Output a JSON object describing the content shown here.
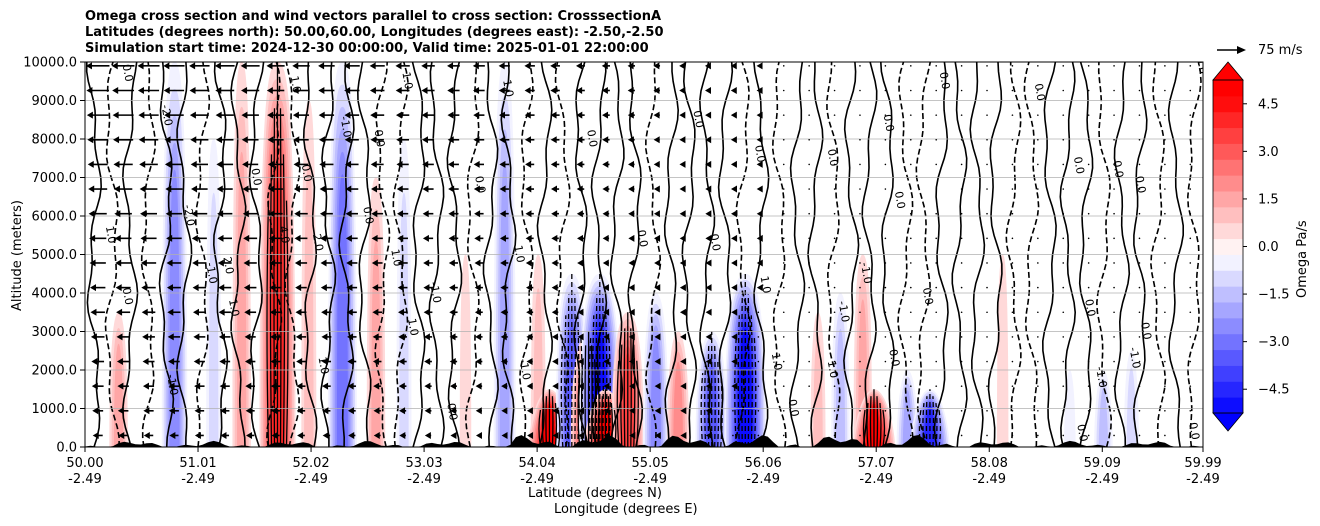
{
  "chart_data": {
    "type": "contourf",
    "title_lines": [
      "Omega cross section and wind vectors parallel to cross section: CrosssectionA",
      "Latitudes (degrees north): 50.00,60.00, Longitudes (degrees east): -2.50,-2.50",
      "Simulation start time: 2024-12-30 00:00:00, Valid time: 2025-01-01 22:00:00"
    ],
    "xlabel_line1": "Latitude (degrees N)",
    "xlabel_line2": "Longitude (degrees E)",
    "ylabel": "Altitude (meters)",
    "ylim": [
      0,
      10000
    ],
    "xlim": [
      50.0,
      59.99
    ],
    "x_ticks": [
      {
        "value": 50.0,
        "lat": "50.00",
        "lon": "-2.49"
      },
      {
        "value": 51.01,
        "lat": "51.01",
        "lon": "-2.49"
      },
      {
        "value": 52.02,
        "lat": "52.02",
        "lon": "-2.49"
      },
      {
        "value": 53.03,
        "lat": "53.03",
        "lon": "-2.49"
      },
      {
        "value": 54.04,
        "lat": "54.04",
        "lon": "-2.49"
      },
      {
        "value": 55.05,
        "lat": "55.05",
        "lon": "-2.49"
      },
      {
        "value": 56.06,
        "lat": "56.06",
        "lon": "-2.49"
      },
      {
        "value": 57.07,
        "lat": "57.07",
        "lon": "-2.49"
      },
      {
        "value": 58.08,
        "lat": "58.08",
        "lon": "-2.49"
      },
      {
        "value": 59.09,
        "lat": "59.09",
        "lon": "-2.49"
      },
      {
        "value": 59.99,
        "lat": "59.99",
        "lon": "-2.49"
      }
    ],
    "y_ticks": [
      {
        "value": 0,
        "label": "0.0"
      },
      {
        "value": 1000,
        "label": "1000.0"
      },
      {
        "value": 2000,
        "label": "2000.0"
      },
      {
        "value": 3000,
        "label": "3000.0"
      },
      {
        "value": 4000,
        "label": "4000.0"
      },
      {
        "value": 5000,
        "label": "5000.0"
      },
      {
        "value": 6000,
        "label": "6000.0"
      },
      {
        "value": 7000,
        "label": "7000.0"
      },
      {
        "value": 8000,
        "label": "8000.0"
      },
      {
        "value": 9000,
        "label": "9000.0"
      },
      {
        "value": 10000,
        "label": "10000.0"
      }
    ],
    "grid": "horizontal",
    "colorbar": {
      "label": "Omega Pa/s",
      "range": [
        -5.25,
        5.25
      ],
      "ticks": [
        {
          "value": 4.5,
          "label": "4.5"
        },
        {
          "value": 3.0,
          "label": "3.0"
        },
        {
          "value": 1.5,
          "label": "1.5"
        },
        {
          "value": 0.0,
          "label": "0.0"
        },
        {
          "value": -1.5,
          "label": "−1.5"
        },
        {
          "value": -3.0,
          "label": "−3.0"
        },
        {
          "value": -4.5,
          "label": "−4.5"
        }
      ],
      "extend": "both",
      "levels_step": 0.5,
      "min_color": "#0000ff",
      "mid_color": "#ffffff",
      "max_color": "#ff0000"
    },
    "quiver_key": {
      "label": "75 m/s"
    },
    "omega_features": [
      {
        "lat": 50.3,
        "z_top": 3500,
        "omega": 1.5
      },
      {
        "lat": 50.8,
        "z_top": 10000,
        "omega": -2.5
      },
      {
        "lat": 51.15,
        "z_top": 8000,
        "omega": -1.0
      },
      {
        "lat": 51.4,
        "z_top": 10000,
        "omega": 1.5
      },
      {
        "lat": 51.72,
        "z_top": 10000,
        "omega": 4.0
      },
      {
        "lat": 52.0,
        "z_top": 9000,
        "omega": 1.0
      },
      {
        "lat": 52.3,
        "z_top": 10000,
        "omega": -3.0
      },
      {
        "lat": 52.6,
        "z_top": 7000,
        "omega": 1.5
      },
      {
        "lat": 52.85,
        "z_top": 8000,
        "omega": -1.0
      },
      {
        "lat": 53.4,
        "z_top": 5000,
        "omega": 0.5
      },
      {
        "lat": 53.75,
        "z_top": 10000,
        "omega": -2.0
      },
      {
        "lat": 54.05,
        "z_top": 5000,
        "omega": 1.0
      },
      {
        "lat": 54.15,
        "z_top": 1500,
        "omega": 5.0
      },
      {
        "lat": 54.35,
        "z_top": 4500,
        "omega": -3.5
      },
      {
        "lat": 54.5,
        "z_top": 3000,
        "omega": 4.0
      },
      {
        "lat": 54.6,
        "z_top": 4500,
        "omega": -5.0
      },
      {
        "lat": 54.65,
        "z_top": 1500,
        "omega": 5.0
      },
      {
        "lat": 54.85,
        "z_top": 3500,
        "omega": 3.5
      },
      {
        "lat": 55.1,
        "z_top": 4000,
        "omega": -2.5
      },
      {
        "lat": 55.3,
        "z_top": 3000,
        "omega": 2.0
      },
      {
        "lat": 55.6,
        "z_top": 3000,
        "omega": -3.5
      },
      {
        "lat": 55.9,
        "z_top": 4500,
        "omega": -5.0
      },
      {
        "lat": 56.55,
        "z_top": 3500,
        "omega": 1.0
      },
      {
        "lat": 56.75,
        "z_top": 4000,
        "omega": -1.5
      },
      {
        "lat": 56.95,
        "z_top": 5000,
        "omega": 1.5
      },
      {
        "lat": 57.05,
        "z_top": 1500,
        "omega": 5.0
      },
      {
        "lat": 57.35,
        "z_top": 2000,
        "omega": -2.0
      },
      {
        "lat": 57.55,
        "z_top": 1500,
        "omega": -4.5
      },
      {
        "lat": 58.2,
        "z_top": 5000,
        "omega": 0.5
      },
      {
        "lat": 58.8,
        "z_top": 2000,
        "omega": -0.5
      },
      {
        "lat": 59.1,
        "z_top": 2000,
        "omega": -1.5
      },
      {
        "lat": 59.35,
        "z_top": 2500,
        "omega": -1.0
      }
    ],
    "contour_labels": [
      {
        "lat": 50.35,
        "z": 9700,
        "text": "0.0"
      },
      {
        "lat": 50.7,
        "z": 8600,
        "text": "-2.0"
      },
      {
        "lat": 50.9,
        "z": 6000,
        "text": "-2.0"
      },
      {
        "lat": 50.2,
        "z": 5500,
        "text": "1.0"
      },
      {
        "lat": 50.35,
        "z": 3900,
        "text": "0.0"
      },
      {
        "lat": 50.75,
        "z": 1600,
        "text": "-1.0"
      },
      {
        "lat": 51.1,
        "z": 4500,
        "text": "-1.0"
      },
      {
        "lat": 51.25,
        "z": 4700,
        "text": "2.0"
      },
      {
        "lat": 51.3,
        "z": 3600,
        "text": "1.0"
      },
      {
        "lat": 51.5,
        "z": 7000,
        "text": "0.0"
      },
      {
        "lat": 51.75,
        "z": 5500,
        "text": "4.0"
      },
      {
        "lat": 52.05,
        "z": 5300,
        "text": "2.0"
      },
      {
        "lat": 51.95,
        "z": 7100,
        "text": "0.0"
      },
      {
        "lat": 51.85,
        "z": 9400,
        "text": "1.0"
      },
      {
        "lat": 52.1,
        "z": 2100,
        "text": "1.0"
      },
      {
        "lat": 52.3,
        "z": 8300,
        "text": "-1.0"
      },
      {
        "lat": 52.6,
        "z": 8000,
        "text": "0.0"
      },
      {
        "lat": 52.5,
        "z": 6000,
        "text": "0.0"
      },
      {
        "lat": 52.75,
        "z": 4900,
        "text": "1.0"
      },
      {
        "lat": 52.9,
        "z": 3100,
        "text": "1.0"
      },
      {
        "lat": 52.85,
        "z": 9500,
        "text": "1.0"
      },
      {
        "lat": 53.1,
        "z": 4000,
        "text": "-1.0"
      },
      {
        "lat": 53.25,
        "z": 900,
        "text": "0.0"
      },
      {
        "lat": 53.5,
        "z": 6800,
        "text": "0.0"
      },
      {
        "lat": 53.75,
        "z": 9300,
        "text": "1.0"
      },
      {
        "lat": 53.85,
        "z": 5000,
        "text": "1.0"
      },
      {
        "lat": 53.9,
        "z": 2000,
        "text": "-1.0"
      },
      {
        "lat": 54.5,
        "z": 8000,
        "text": "0.0"
      },
      {
        "lat": 54.95,
        "z": 5400,
        "text": "0.0"
      },
      {
        "lat": 55.45,
        "z": 8500,
        "text": "0.0"
      },
      {
        "lat": 55.6,
        "z": 5300,
        "text": "0.0"
      },
      {
        "lat": 56.0,
        "z": 7600,
        "text": "0.0"
      },
      {
        "lat": 56.05,
        "z": 4200,
        "text": "1.0"
      },
      {
        "lat": 56.15,
        "z": 2200,
        "text": "1.0"
      },
      {
        "lat": 56.3,
        "z": 1000,
        "text": "0.0"
      },
      {
        "lat": 56.65,
        "z": 7500,
        "text": "0.0"
      },
      {
        "lat": 56.75,
        "z": 3500,
        "text": "-1.0"
      },
      {
        "lat": 56.65,
        "z": 2000,
        "text": "1.0"
      },
      {
        "lat": 56.95,
        "z": 4500,
        "text": "-1.0"
      },
      {
        "lat": 57.15,
        "z": 8400,
        "text": "0.0"
      },
      {
        "lat": 57.25,
        "z": 6400,
        "text": "0.0"
      },
      {
        "lat": 57.5,
        "z": 3900,
        "text": "0.0"
      },
      {
        "lat": 57.2,
        "z": 2300,
        "text": "0.0"
      },
      {
        "lat": 57.65,
        "z": 9500,
        "text": "0.0"
      },
      {
        "lat": 58.5,
        "z": 9200,
        "text": "0.0"
      },
      {
        "lat": 58.85,
        "z": 7300,
        "text": "0.0"
      },
      {
        "lat": 59.2,
        "z": 7200,
        "text": "0.0"
      },
      {
        "lat": 59.4,
        "z": 6800,
        "text": "0.0"
      },
      {
        "lat": 58.95,
        "z": 3600,
        "text": "0.0"
      },
      {
        "lat": 59.05,
        "z": 1800,
        "text": "-1.0"
      },
      {
        "lat": 59.35,
        "z": 2300,
        "text": "-1.0"
      },
      {
        "lat": 59.45,
        "z": 3000,
        "text": "0.0"
      },
      {
        "lat": 59.95,
        "z": 9900,
        "text": "0.0"
      },
      {
        "lat": 59.88,
        "z": 400,
        "text": "0.0"
      },
      {
        "lat": 58.88,
        "z": 350,
        "text": "0.0"
      }
    ]
  }
}
